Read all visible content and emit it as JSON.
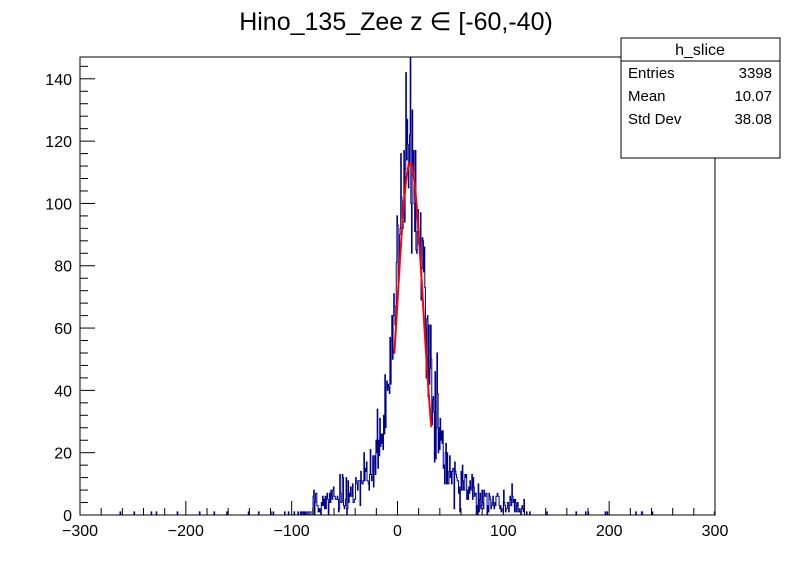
{
  "chart_data": {
    "type": "histogram",
    "title": "Hino_135_Zee z  ∈ [-60,-40)",
    "xlabel": "",
    "ylabel": "",
    "xlim": [
      -300,
      300
    ],
    "ylim": [
      0,
      147
    ],
    "x_ticks": [
      -300,
      -200,
      -100,
      0,
      100,
      200,
      300
    ],
    "x_tick_labels": [
      "−300",
      "−200",
      "−100",
      "0",
      "100",
      "200",
      "300"
    ],
    "y_ticks": [
      0,
      20,
      40,
      60,
      80,
      100,
      120,
      140
    ],
    "y_tick_labels": [
      "0",
      "20",
      "40",
      "60",
      "80",
      "100",
      "120",
      "140"
    ],
    "grid": false,
    "bin_width": 0.6,
    "histogram": {
      "color": "#00008b",
      "center": 12,
      "peak": 115,
      "core_sigma": 12,
      "tail_width": 30,
      "support": [
        -80,
        120
      ]
    },
    "fit": {
      "color": "#ff0000",
      "x_range": [
        -3,
        32
      ],
      "mean": 12,
      "sigma": 12,
      "amplitude": 113
    },
    "stats_box": {
      "title": "h_slice",
      "rows": [
        {
          "label": "Entries",
          "value": "3398"
        },
        {
          "label": "Mean",
          "value": "10.07"
        },
        {
          "label": "Std Dev",
          "value": "38.08"
        }
      ]
    }
  }
}
